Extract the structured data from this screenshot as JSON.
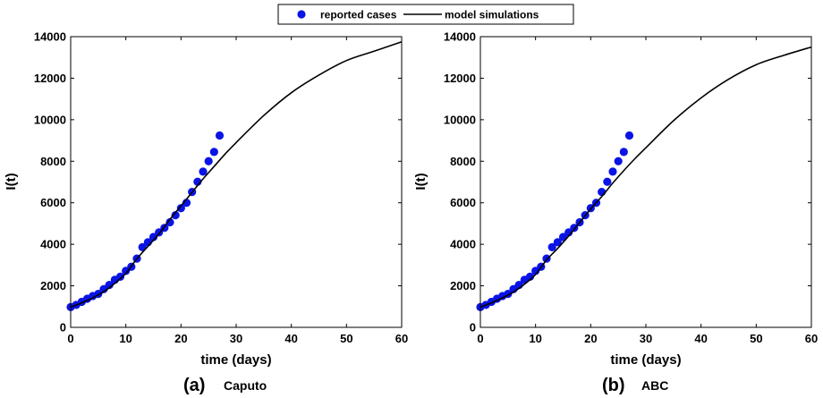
{
  "legend": {
    "items": [
      {
        "label": "reported cases",
        "marker": "circle",
        "color": "#0a14e6"
      },
      {
        "label": "model simulations",
        "marker": "line",
        "color": "#000000"
      }
    ]
  },
  "chart_data": [
    {
      "type": "scatter",
      "caption_letter": "(a)",
      "caption_name": "Caputo",
      "xlabel": "time (days)",
      "ylabel": "I(t)",
      "xlim": [
        0,
        60
      ],
      "ylim": [
        0,
        14000
      ],
      "xticks": [
        0,
        10,
        20,
        30,
        40,
        50,
        60
      ],
      "yticks": [
        0,
        2000,
        4000,
        6000,
        8000,
        10000,
        12000,
        14000
      ],
      "grid": false,
      "series": [
        {
          "name": "reported cases",
          "kind": "points",
          "color": "#0a14e6",
          "x": [
            0,
            1,
            2,
            3,
            4,
            5,
            6,
            7,
            8,
            9,
            10,
            11,
            12,
            13,
            14,
            15,
            16,
            17,
            18,
            19,
            20,
            21,
            22,
            23,
            24,
            25,
            26,
            27
          ],
          "y": [
            975,
            1080,
            1230,
            1380,
            1510,
            1610,
            1840,
            2040,
            2290,
            2440,
            2720,
            2920,
            3310,
            3860,
            4100,
            4350,
            4570,
            4790,
            5060,
            5400,
            5740,
            6000,
            6520,
            7010,
            7500,
            8000,
            8450,
            9240
          ]
        },
        {
          "name": "model simulations",
          "kind": "line",
          "color": "#000000",
          "x": [
            0,
            2,
            4,
            6,
            8,
            10,
            12,
            14,
            16,
            18,
            20,
            22,
            24,
            26,
            28,
            30,
            35,
            40,
            45,
            50,
            55,
            60
          ],
          "y": [
            975,
            1180,
            1420,
            1720,
            2120,
            2600,
            3300,
            3900,
            4500,
            5200,
            5850,
            6500,
            7150,
            7750,
            8350,
            8900,
            10200,
            11300,
            12150,
            12850,
            13300,
            13750
          ]
        }
      ]
    },
    {
      "type": "scatter",
      "caption_letter": "(b)",
      "caption_name": "ABC",
      "xlabel": "time (days)",
      "ylabel": "I(t)",
      "xlim": [
        0,
        60
      ],
      "ylim": [
        0,
        14000
      ],
      "xticks": [
        0,
        10,
        20,
        30,
        40,
        50,
        60
      ],
      "yticks": [
        0,
        2000,
        4000,
        6000,
        8000,
        10000,
        12000,
        14000
      ],
      "grid": false,
      "series": [
        {
          "name": "reported cases",
          "kind": "points",
          "color": "#0a14e6",
          "x": [
            0,
            1,
            2,
            3,
            4,
            5,
            6,
            7,
            8,
            9,
            10,
            11,
            12,
            13,
            14,
            15,
            16,
            17,
            18,
            19,
            20,
            21,
            22,
            23,
            24,
            25,
            26,
            27
          ],
          "y": [
            975,
            1080,
            1230,
            1380,
            1510,
            1610,
            1840,
            2040,
            2290,
            2440,
            2720,
            2920,
            3310,
            3860,
            4100,
            4350,
            4570,
            4790,
            5060,
            5400,
            5740,
            6000,
            6520,
            7010,
            7500,
            8000,
            8450,
            9240
          ]
        },
        {
          "name": "model simulations",
          "kind": "line",
          "color": "#000000",
          "x": [
            0,
            2,
            4,
            6,
            8,
            10,
            12,
            14,
            16,
            18,
            20,
            22,
            24,
            26,
            28,
            30,
            35,
            40,
            45,
            50,
            55,
            60
          ],
          "y": [
            975,
            1180,
            1420,
            1700,
            2080,
            2550,
            3250,
            3800,
            4400,
            5050,
            5700,
            6300,
            6950,
            7550,
            8120,
            8650,
            9950,
            11050,
            11950,
            12650,
            13100,
            13500
          ]
        }
      ]
    }
  ]
}
